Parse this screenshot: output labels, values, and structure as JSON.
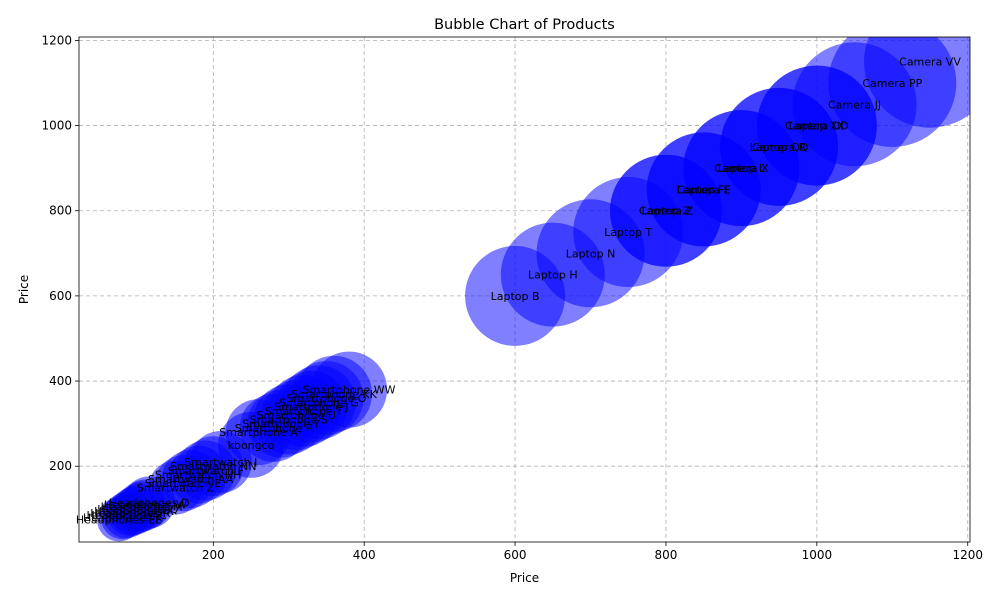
{
  "chart_data": {
    "type": "scatter",
    "title": "Bubble Chart of Products",
    "xlabel": "Price",
    "ylabel": "Price",
    "xlim": [
      22,
      1203
    ],
    "ylim": [
      22,
      1208
    ],
    "xticks": [
      200,
      400,
      600,
      800,
      1000,
      1200
    ],
    "yticks": [
      200,
      400,
      600,
      800,
      1000,
      1200
    ],
    "grid": true,
    "bubble_color": "#0000ff",
    "points": [
      {
        "label": "Headphones EE",
        "x": 75,
        "y": 75,
        "size": 22
      },
      {
        "label": "Headphones K",
        "x": 80,
        "y": 80,
        "size": 22
      },
      {
        "label": "Headphones C",
        "x": 85,
        "y": 85,
        "size": 23
      },
      {
        "label": "Headphones R",
        "x": 90,
        "y": 90,
        "size": 23
      },
      {
        "label": "Headphones X",
        "x": 95,
        "y": 95,
        "size": 24
      },
      {
        "label": "Headphones Q",
        "x": 100,
        "y": 100,
        "size": 24
      },
      {
        "label": "Headphones M",
        "x": 105,
        "y": 105,
        "size": 25
      },
      {
        "label": "Headphones W",
        "x": 110,
        "y": 110,
        "size": 25
      },
      {
        "label": "Headphones D",
        "x": 115,
        "y": 115,
        "size": 26
      },
      {
        "label": "Smartwatch Z",
        "x": 150,
        "y": 150,
        "size": 27
      },
      {
        "label": "Smartwatch E",
        "x": 160,
        "y": 160,
        "size": 28
      },
      {
        "label": "Smartwatch AA",
        "x": 170,
        "y": 170,
        "size": 29
      },
      {
        "label": "Smartwatch HH",
        "x": 180,
        "y": 180,
        "size": 29
      },
      {
        "label": "Smartwatch F",
        "x": 190,
        "y": 190,
        "size": 30
      },
      {
        "label": "Smartwatch NN",
        "x": 200,
        "y": 200,
        "size": 30
      },
      {
        "label": "Smartwatch I",
        "x": 210,
        "y": 210,
        "size": 31
      },
      {
        "label": "kbongco",
        "x": 250,
        "y": 250,
        "size": 33
      },
      {
        "label": "Smartphone A",
        "x": 260,
        "y": 280,
        "size": 33
      },
      {
        "label": "Smartphone P",
        "x": 280,
        "y": 290,
        "size": 34
      },
      {
        "label": "Smartphone Y",
        "x": 290,
        "y": 300,
        "size": 34
      },
      {
        "label": "Smartphone S",
        "x": 300,
        "y": 310,
        "size": 35
      },
      {
        "label": "Smartphone U",
        "x": 310,
        "y": 320,
        "size": 35
      },
      {
        "label": "Smartphone T",
        "x": 320,
        "y": 330,
        "size": 36
      },
      {
        "label": "Smartphone J",
        "x": 330,
        "y": 340,
        "size": 36
      },
      {
        "label": "Smartphone G",
        "x": 340,
        "y": 350,
        "size": 37
      },
      {
        "label": "Smartphone O",
        "x": 350,
        "y": 360,
        "size": 37
      },
      {
        "label": "Smartphone KK",
        "x": 360,
        "y": 370,
        "size": 38
      },
      {
        "label": "Smartphone WW",
        "x": 380,
        "y": 380,
        "size": 38
      },
      {
        "label": "Laptop B",
        "x": 600,
        "y": 600,
        "size": 50
      },
      {
        "label": "Laptop H",
        "x": 650,
        "y": 650,
        "size": 52
      },
      {
        "label": "Laptop N",
        "x": 700,
        "y": 700,
        "size": 54
      },
      {
        "label": "Laptop T",
        "x": 750,
        "y": 750,
        "size": 55
      },
      {
        "label": "Camera Z",
        "x": 800,
        "y": 800,
        "size": 56
      },
      {
        "label": "Laptop Z",
        "x": 800,
        "y": 800,
        "size": 56
      },
      {
        "label": "Camera E",
        "x": 850,
        "y": 850,
        "size": 57
      },
      {
        "label": "Laptop FF",
        "x": 850,
        "y": 850,
        "size": 57
      },
      {
        "label": "Camera X",
        "x": 900,
        "y": 900,
        "size": 58
      },
      {
        "label": "Laptop L",
        "x": 900,
        "y": 900,
        "size": 58
      },
      {
        "label": "Camera R",
        "x": 950,
        "y": 950,
        "size": 59
      },
      {
        "label": "Laptop QQ",
        "x": 950,
        "y": 950,
        "size": 59
      },
      {
        "label": "Camera DD",
        "x": 1000,
        "y": 1000,
        "size": 60
      },
      {
        "label": "Laptop XX",
        "x": 1000,
        "y": 1000,
        "size": 60
      },
      {
        "label": "Camera JJ",
        "x": 1050,
        "y": 1050,
        "size": 62
      },
      {
        "label": "Camera PP",
        "x": 1100,
        "y": 1100,
        "size": 64
      },
      {
        "label": "Camera VV",
        "x": 1150,
        "y": 1150,
        "size": 66
      }
    ]
  }
}
